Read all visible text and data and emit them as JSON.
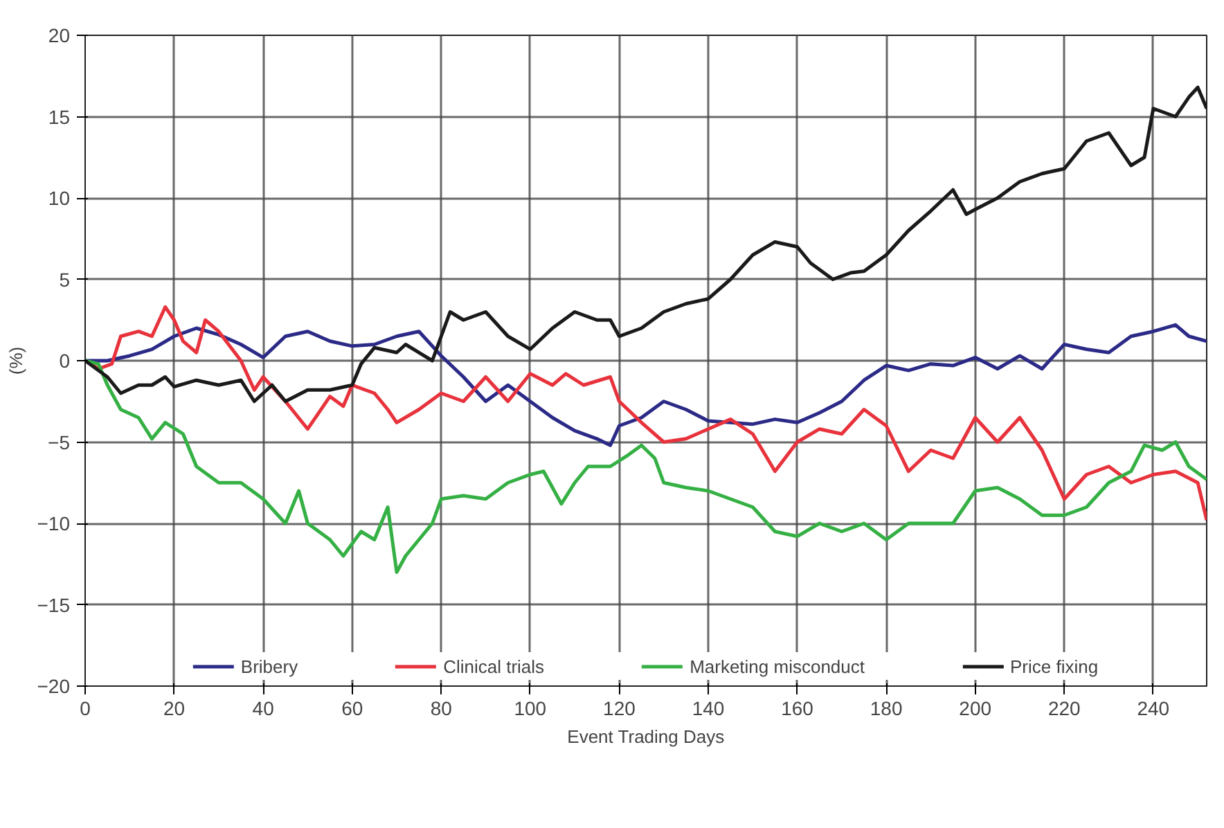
{
  "chart_data": {
    "type": "line",
    "xlabel": "Event Trading Days",
    "ylabel": "(%)",
    "xlim": [
      0,
      252
    ],
    "ylim": [
      -20,
      20
    ],
    "xticks": [
      0,
      20,
      40,
      60,
      80,
      100,
      120,
      140,
      160,
      180,
      200,
      220,
      240
    ],
    "yticks": [
      -20,
      -15,
      -10,
      -5,
      0,
      5,
      10,
      15,
      20
    ],
    "grid": true,
    "legend": "bottom",
    "line_style": "solid",
    "series": [
      {
        "name": "Bribery",
        "color": "#2b2a87",
        "x": [
          0,
          5,
          10,
          15,
          20,
          25,
          30,
          35,
          40,
          45,
          50,
          55,
          60,
          65,
          70,
          75,
          80,
          85,
          90,
          95,
          100,
          105,
          110,
          115,
          118,
          120,
          125,
          130,
          135,
          140,
          145,
          150,
          155,
          160,
          165,
          170,
          175,
          180,
          185,
          190,
          195,
          200,
          205,
          210,
          215,
          220,
          225,
          230,
          235,
          240,
          245,
          248,
          252
        ],
        "values": [
          0,
          0,
          0.3,
          0.7,
          1.5,
          2,
          1.6,
          1,
          0.2,
          1.5,
          1.8,
          1.2,
          0.9,
          1,
          1.5,
          1.8,
          0.3,
          -1,
          -2.5,
          -1.5,
          -2.5,
          -3.5,
          -4.3,
          -4.8,
          -5.2,
          -4,
          -3.5,
          -2.5,
          -3,
          -3.7,
          -3.8,
          -3.9,
          -3.6,
          -3.8,
          -3.2,
          -2.5,
          -1.2,
          -0.3,
          -0.6,
          -0.2,
          -0.3,
          0.2,
          -0.5,
          0.3,
          -0.5,
          1,
          0.7,
          0.5,
          1.5,
          1.8,
          2.2,
          1.5,
          1.2
        ]
      },
      {
        "name": "Clinical trials",
        "color": "#e8323c",
        "x": [
          0,
          3,
          6,
          8,
          12,
          15,
          18,
          20,
          22,
          25,
          27,
          30,
          35,
          38,
          40,
          45,
          50,
          55,
          58,
          60,
          65,
          68,
          70,
          75,
          80,
          85,
          90,
          95,
          100,
          105,
          108,
          112,
          118,
          120,
          125,
          130,
          135,
          140,
          145,
          150,
          155,
          160,
          165,
          170,
          175,
          180,
          185,
          190,
          195,
          200,
          205,
          210,
          215,
          220,
          225,
          230,
          235,
          240,
          245,
          250,
          252
        ],
        "values": [
          0,
          -0.5,
          -0.2,
          1.5,
          1.8,
          1.5,
          3.3,
          2.5,
          1.2,
          0.5,
          2.5,
          1.8,
          0,
          -1.8,
          -1,
          -2.5,
          -4.2,
          -2.2,
          -2.8,
          -1.5,
          -2,
          -3,
          -3.8,
          -3,
          -2,
          -2.5,
          -1,
          -2.5,
          -0.8,
          -1.5,
          -0.8,
          -1.5,
          -1,
          -2.5,
          -3.8,
          -5,
          -4.8,
          -4.2,
          -3.6,
          -4.5,
          -6.8,
          -5,
          -4.2,
          -4.5,
          -3,
          -4,
          -6.8,
          -5.5,
          -6,
          -3.5,
          -5,
          -3.5,
          -5.5,
          -8.5,
          -7,
          -6.5,
          -7.5,
          -7,
          -6.8,
          -7.5,
          -9.8
        ]
      },
      {
        "name": "Marketing misconduct",
        "color": "#35b044",
        "x": [
          0,
          3,
          5,
          8,
          12,
          15,
          18,
          22,
          25,
          30,
          35,
          40,
          45,
          48,
          50,
          55,
          58,
          62,
          65,
          68,
          70,
          72,
          75,
          78,
          80,
          85,
          90,
          95,
          100,
          103,
          107,
          110,
          113,
          118,
          122,
          125,
          128,
          130,
          135,
          140,
          145,
          150,
          155,
          160,
          165,
          170,
          175,
          180,
          185,
          190,
          195,
          200,
          205,
          210,
          215,
          220,
          225,
          230,
          235,
          238,
          242,
          245,
          248,
          252
        ],
        "values": [
          0,
          -0.2,
          -1.5,
          -3,
          -3.5,
          -4.8,
          -3.8,
          -4.5,
          -6.5,
          -7.5,
          -7.5,
          -8.5,
          -10,
          -8,
          -10,
          -11,
          -12,
          -10.5,
          -11,
          -9,
          -13,
          -12,
          -11,
          -10,
          -8.5,
          -8.3,
          -8.5,
          -7.5,
          -7,
          -6.8,
          -8.8,
          -7.5,
          -6.5,
          -6.5,
          -5.8,
          -5.2,
          -6,
          -7.5,
          -7.8,
          -8,
          -8.5,
          -9,
          -10.5,
          -10.8,
          -10,
          -10.5,
          -10,
          -11,
          -10,
          -10,
          -10,
          -8,
          -7.8,
          -8.5,
          -9.5,
          -9.5,
          -9,
          -7.5,
          -6.8,
          -5.2,
          -5.5,
          -5,
          -6.5,
          -7.3
        ]
      },
      {
        "name": "Price fixing",
        "color": "#1a1a1a",
        "x": [
          0,
          5,
          8,
          12,
          15,
          18,
          20,
          25,
          30,
          35,
          38,
          42,
          45,
          50,
          55,
          60,
          62,
          65,
          70,
          72,
          78,
          80,
          82,
          85,
          90,
          95,
          100,
          105,
          110,
          115,
          118,
          120,
          125,
          130,
          135,
          140,
          145,
          150,
          155,
          160,
          163,
          168,
          172,
          175,
          180,
          185,
          190,
          195,
          198,
          200,
          205,
          210,
          215,
          220,
          225,
          230,
          235,
          238,
          240,
          245,
          248,
          250,
          252
        ],
        "values": [
          0,
          -1,
          -2,
          -1.5,
          -1.5,
          -1,
          -1.6,
          -1.2,
          -1.5,
          -1.2,
          -2.5,
          -1.5,
          -2.5,
          -1.8,
          -1.8,
          -1.5,
          -0.2,
          0.8,
          0.5,
          1,
          0,
          1.5,
          3,
          2.5,
          3,
          1.5,
          0.7,
          2,
          3,
          2.5,
          2.5,
          1.5,
          2,
          3,
          3.5,
          3.8,
          5,
          6.5,
          7.3,
          7,
          6,
          5,
          5.4,
          5.5,
          6.5,
          8,
          9.2,
          10.5,
          9,
          9.3,
          10,
          11,
          11.5,
          11.8,
          13.5,
          14,
          12,
          12.5,
          15.5,
          15,
          16.2,
          16.8,
          15.5
        ]
      }
    ]
  }
}
